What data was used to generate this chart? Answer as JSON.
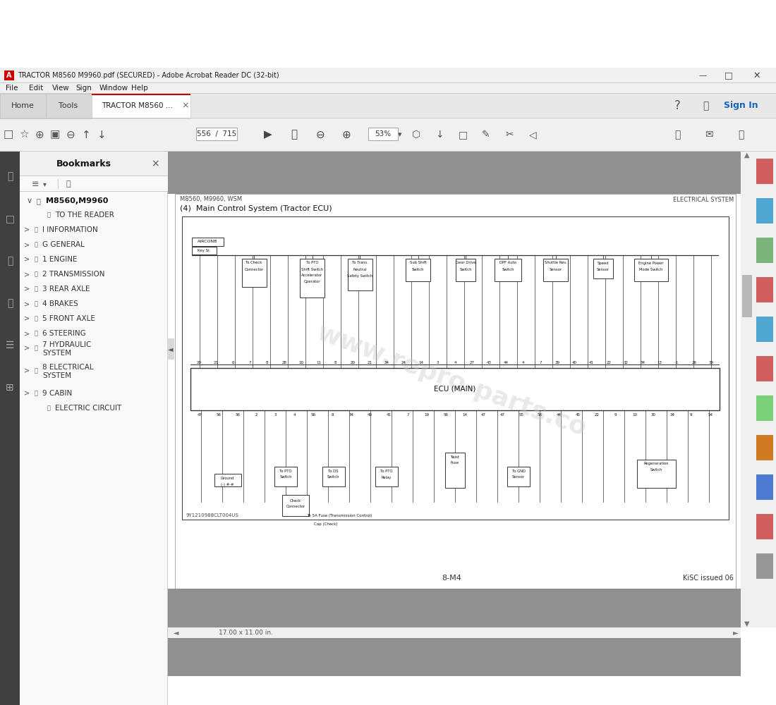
{
  "title_bar": "TRACTOR M8560 M9960.pdf (SECURED) - Adobe Acrobat Reader DC (32-bit)",
  "menu_items": [
    "File",
    "Edit",
    "View",
    "Sign",
    "Window",
    "Help"
  ],
  "page_info": "556  /  715",
  "zoom_level": "53%",
  "bookmarks_title": "Bookmarks",
  "bookmark_root": "M8560,M9960",
  "bookmark_items": [
    {
      "label": "TO THE READER",
      "indent": 2,
      "expandable": false
    },
    {
      "label": "I INFORMATION",
      "indent": 1,
      "expandable": true
    },
    {
      "label": "G GENERAL",
      "indent": 1,
      "expandable": true
    },
    {
      "label": "1 ENGINE",
      "indent": 1,
      "expandable": true
    },
    {
      "label": "2 TRANSMISSION",
      "indent": 1,
      "expandable": true
    },
    {
      "label": "3 REAR AXLE",
      "indent": 1,
      "expandable": true
    },
    {
      "label": "4 BRAKES",
      "indent": 1,
      "expandable": true
    },
    {
      "label": "5 FRONT AXLE",
      "indent": 1,
      "expandable": true
    },
    {
      "label": "6 STEERING",
      "indent": 1,
      "expandable": true
    },
    {
      "label": "7 HYDRAULIC SYSTEM",
      "indent": 1,
      "expandable": true,
      "wrap": true
    },
    {
      "label": "8 ELECTRICAL SYSTEM",
      "indent": 1,
      "expandable": true,
      "wrap": true
    },
    {
      "label": "9 CABIN",
      "indent": 1,
      "expandable": true
    },
    {
      "label": "ELECTRIC CIRCUIT",
      "indent": 2,
      "expandable": false
    }
  ],
  "doc_header_left": "M8560, M9960, WSM",
  "doc_header_right": "ELECTRICAL SYSTEM",
  "doc_title": "(4)  Main Control System (Tractor ECU)",
  "page_footer_center": "8-M4",
  "page_footer_right": "KiSC issued 06",
  "diagram_code": "9Y1210988CLT004US",
  "watermark_text": "www.repro-parts.co",
  "diagram_ecu_label": "ECU (MAIN)",
  "bg_white": "#ffffff",
  "bg_light": "#f0f0f0",
  "bg_gray": "#808080",
  "bg_mid": "#d0d0d0",
  "sidebar_dark": "#404040",
  "text_dark": "#111111",
  "text_med": "#333333",
  "text_light": "#666666",
  "border_color": "#aaaaaa",
  "scrollbar_thumb": "#b0b0b0",
  "acrobat_red": "#cc0000",
  "blue_link": "#1565c0",
  "tab_active_border": "#cc0000",
  "right_panel_bg": "#f5f5f5",
  "right_panel_icons": [
    "#cc4444",
    "#3399cc",
    "#66aa66",
    "#cc4444",
    "#3399cc",
    "#cc4444",
    "#66cc66",
    "#cc6600",
    "#3366cc",
    "#cc4444",
    "#888888"
  ],
  "numbers_top": [
    "20",
    "21",
    "6",
    "7",
    "8",
    "28",
    "10",
    "11",
    "8",
    "20",
    "21",
    "34",
    "24",
    "14",
    "3",
    "4",
    "27",
    "43",
    "44",
    "4",
    "7",
    "39",
    "40",
    "41",
    "22",
    "32",
    "34",
    "13",
    "1",
    "26",
    "39"
  ],
  "numbers_bot": [
    "47",
    "56",
    "56",
    "2",
    "3",
    "4",
    "56",
    "8",
    "34",
    "40",
    "41",
    "7",
    "19",
    "56",
    "14",
    "47",
    "47",
    "55",
    "56",
    "44",
    "45",
    "22",
    "9",
    "10",
    "30",
    "34",
    "9",
    "54"
  ]
}
